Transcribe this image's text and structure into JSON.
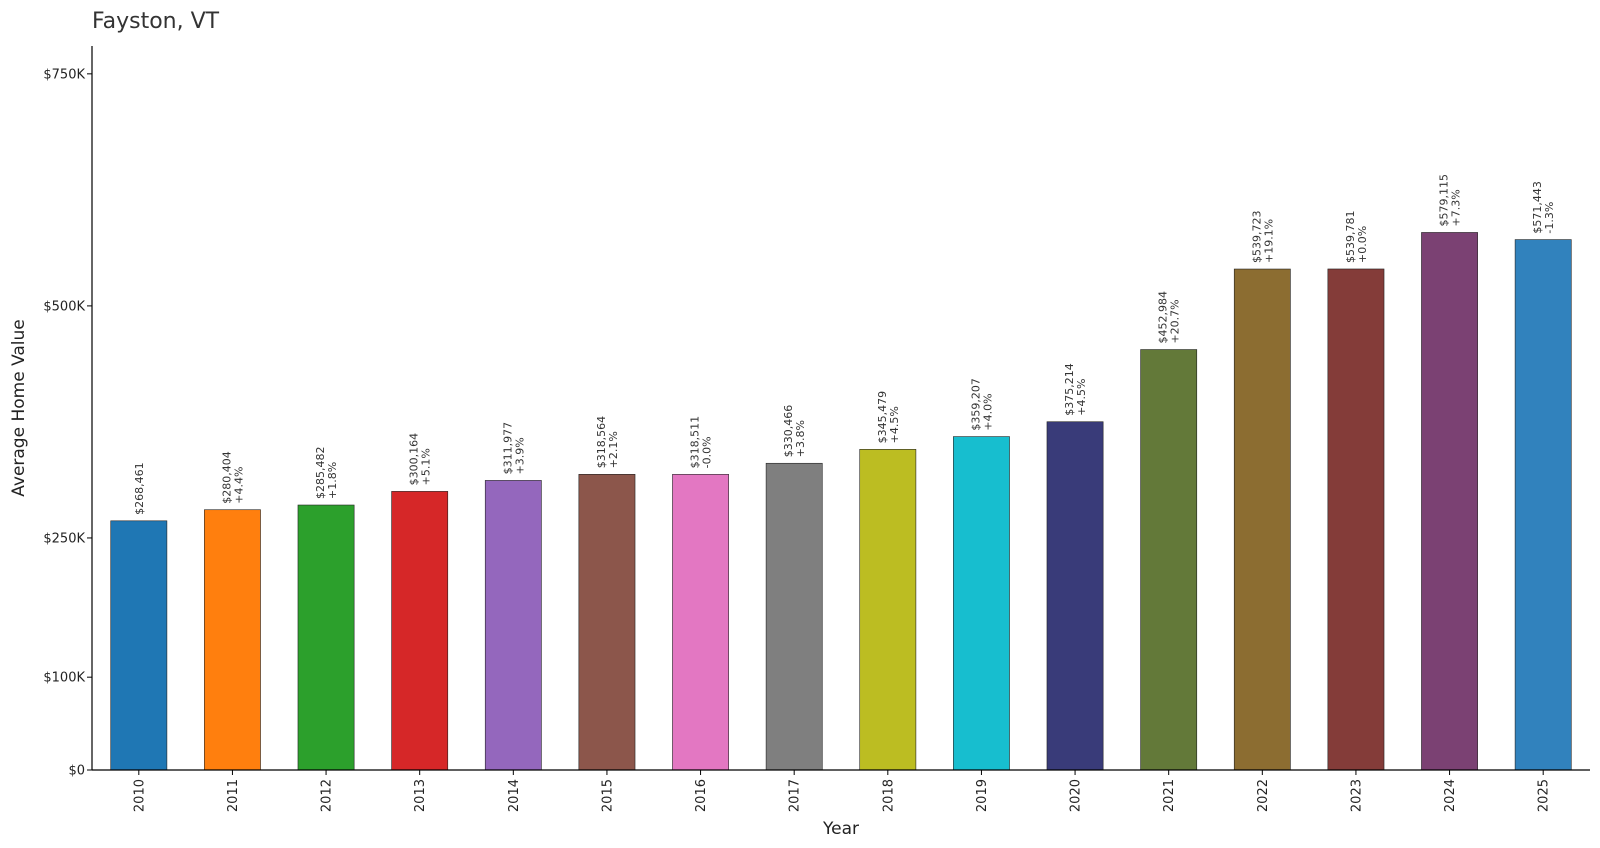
{
  "chart_data": {
    "type": "bar",
    "title": "Fayston, VT",
    "xlabel": "Year",
    "ylabel": "Average Home Value",
    "categories": [
      "2010",
      "2011",
      "2012",
      "2013",
      "2014",
      "2015",
      "2016",
      "2017",
      "2018",
      "2019",
      "2020",
      "2021",
      "2022",
      "2023",
      "2024",
      "2025"
    ],
    "values": [
      268461,
      280404,
      285482,
      300164,
      311977,
      318564,
      318511,
      330466,
      345479,
      359207,
      375214,
      452984,
      539723,
      539781,
      579115,
      571443
    ],
    "value_labels": [
      "$268,461",
      "$280,404",
      "$285,482",
      "$300,164",
      "$311,977",
      "$318,564",
      "$318,511",
      "$330,466",
      "$345,479",
      "$359,207",
      "$375,214",
      "$452,984",
      "$539,723",
      "$539,781",
      "$579,115",
      "$571,443"
    ],
    "change_labels": [
      "",
      "+4.4%",
      "+1.8%",
      "+5.1%",
      "+3.9%",
      "+2.1%",
      "-0.0%",
      "+3.8%",
      "+4.5%",
      "+4.0%",
      "+4.5%",
      "+20.7%",
      "+19.1%",
      "+0.0%",
      "+7.3%",
      "-1.3%"
    ],
    "colors": [
      "#1f77b4",
      "#ff7f0e",
      "#2ca02c",
      "#d62728",
      "#9467bd",
      "#8c564b",
      "#e377c2",
      "#7f7f7f",
      "#bcbd22",
      "#17becf",
      "#393b79",
      "#637939",
      "#8c6d31",
      "#843c39",
      "#7b4173",
      "#3182bd"
    ],
    "yticks": [
      0,
      100000,
      250000,
      500000,
      750000
    ],
    "ytick_labels": [
      "$0",
      "$100K",
      "$250K",
      "$500K",
      "$750K"
    ],
    "ylim": [
      0,
      780000
    ],
    "grid": false,
    "legend": "none"
  }
}
